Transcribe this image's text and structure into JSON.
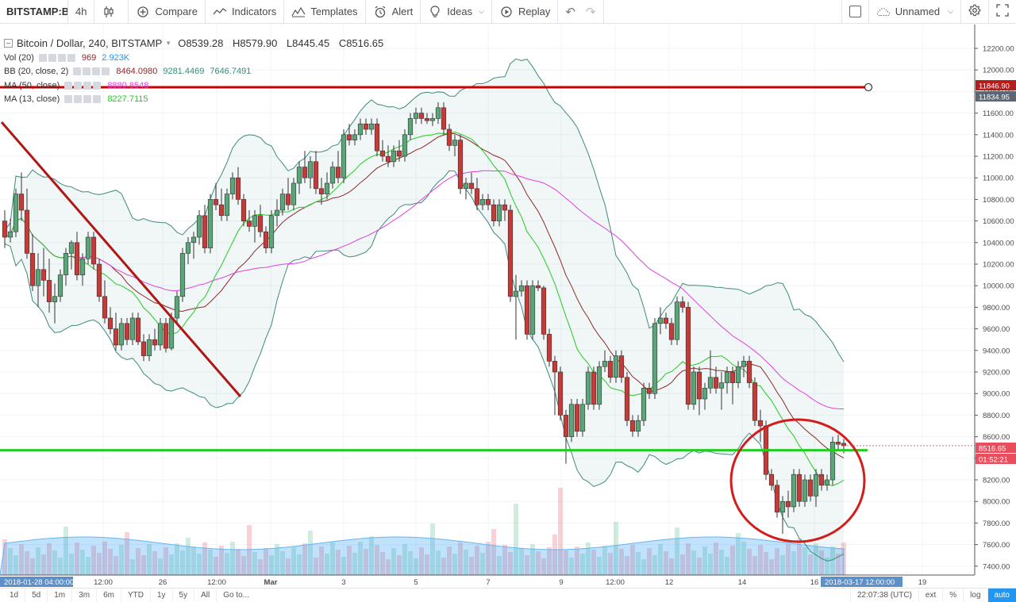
{
  "toolbar": {
    "symbol": "BITSTAMP:BTCUSD",
    "interval": "4h",
    "compare": "Compare",
    "indicators": "Indicators",
    "templates": "Templates",
    "alert": "Alert",
    "ideas": "Ideas",
    "replay": "Replay",
    "layout_name": "Unnamed"
  },
  "legend": {
    "title": "Bitcoin / Dollar, 240, BITSTAMP",
    "open": "O8539.28",
    "high": "H8579.90",
    "low": "L8445.45",
    "close": "C8516.65",
    "vol_label": "Vol (20)",
    "vol_v1": "969",
    "vol_v2": "2.923K",
    "bb_label": "BB (20, close, 2)",
    "bb_v1": "8464.0980",
    "bb_v2": "9281.4469",
    "bb_v3": "7646.7491",
    "ma50_label": "MA (50, close)",
    "ma50_v": "8880.8548",
    "ma13_label": "MA (13, close)",
    "ma13_v": "8227.7115"
  },
  "colors": {
    "up": "#53b987",
    "down": "#eb4d5c",
    "ma50": "#e040e0",
    "ma13": "#22cc22",
    "bb_basis": "#8b2a2a",
    "bb_band": "#3d8b7a",
    "resistance": "#cc0000",
    "support": "#22cc22"
  },
  "price_axis": {
    "ticks": [
      "12200.00",
      "12000.00",
      "11800.00",
      "11600.00",
      "11400.00",
      "11200.00",
      "11000.00",
      "10800.00",
      "10600.00",
      "10400.00",
      "10200.00",
      "10000.00",
      "9800.00",
      "9600.00",
      "9400.00",
      "9200.00",
      "9000.00",
      "8800.00",
      "8600.00",
      "8400.00",
      "8200.00",
      "8000.00",
      "7800.00",
      "7600.00",
      "7400.00"
    ],
    "resistance_labels": [
      "11846.90",
      "11834.95"
    ],
    "last_price": "8516.65",
    "countdown": "01:52:21"
  },
  "time_axis": {
    "labels": [
      "12:00",
      "26",
      "12:00",
      "Mar",
      "3",
      "5",
      "7",
      "9",
      "12:00",
      "12",
      "14",
      "16",
      "19"
    ],
    "start_badge": "2018-01-28 04:00:00",
    "end_badge": "2018-03-17 12:00:00"
  },
  "chart_data": {
    "type": "candlestick",
    "ylim": [
      7350,
      12300
    ],
    "horizontal_lines": [
      11840,
      8475
    ],
    "indicators": [
      "Volume",
      "Bollinger Bands",
      "MA 50",
      "MA 13"
    ]
  },
  "bottombar": {
    "timeframes": [
      "1d",
      "5d",
      "1m",
      "3m",
      "6m",
      "YTD",
      "1y",
      "5y",
      "All"
    ],
    "goto": "Go to...",
    "clock": "22:07:38 (UTC)",
    "ext": "ext",
    "percent": "%",
    "log": "log",
    "auto": "auto"
  }
}
